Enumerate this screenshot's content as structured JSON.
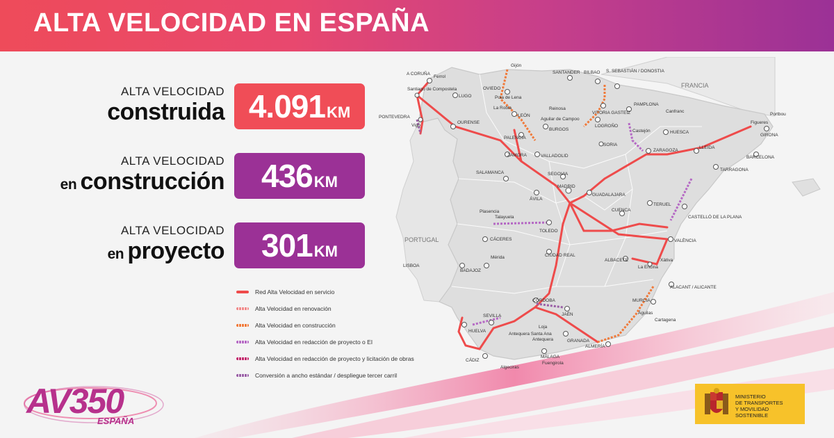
{
  "header": {
    "title": "ALTA VELOCIDAD EN ESPAÑA"
  },
  "stats": [
    {
      "label": "ALTA VELOCIDAD",
      "prefix": "",
      "word": "construida",
      "value": "4.091",
      "unit": "KM",
      "color": "#f04d57"
    },
    {
      "label": "ALTA VELOCIDAD",
      "prefix": "en ",
      "word": "construcción",
      "value": "436",
      "unit": "KM",
      "color": "#9b3196"
    },
    {
      "label": "ALTA VELOCIDAD",
      "prefix": "en ",
      "word": "proyecto",
      "value": "301",
      "unit": "KM",
      "color": "#9b3196"
    }
  ],
  "map": {
    "countries": {
      "francia": "FRANCIA",
      "portugal": "PORTUGAL"
    },
    "cities": [
      "A CORUÑA",
      "Ferrol",
      "Santiago de Compostela",
      "PONTEVEDRA",
      "Vigo",
      "LUGO",
      "OURENSE",
      "OVIEDO",
      "Gijón",
      "Pola de Lena",
      "La Robla",
      "LEÓN",
      "SANTANDER",
      "BILBAO",
      "S. SEBASTIÁN / DONOSTIA",
      "VITORIA GASTEIZ",
      "Reinosa",
      "Aguilar de Campoo",
      "BURGOS",
      "PALENCIA",
      "ZAMORA",
      "VALLADOLID",
      "PAMPLONA",
      "Castejón",
      "LOGROÑO",
      "SORIA",
      "HUESCA",
      "Canfranc",
      "Portbou",
      "Figueres",
      "GIRONA",
      "BARCELONA",
      "LLEIDA",
      "ZARAGOZA",
      "TARRAGONA",
      "SALAMANCA",
      "ÁVILA",
      "SEGOVIA",
      "MADRID",
      "GUADALAJARA",
      "TERUEL",
      "CUENCA",
      "CASTELLÓ DE LA PLANA",
      "VALÈNCIA",
      "Plasencia",
      "Talayuela",
      "TOLEDO",
      "CÁCERES",
      "Mérida",
      "BADAJOZ",
      "CIUDAD REAL",
      "ALBACETE",
      "Xàtiva",
      "La Encina",
      "ALACANT / ALICANTE",
      "MURCIA",
      "Cartagena",
      "Águilas",
      "CÓRDOBA",
      "JAÉN",
      "SEVILLA",
      "HUELVA",
      "CÁDIZ",
      "Loja",
      "Antequera",
      "Antequera Santa Ana",
      "GRANADA",
      "MÁLAGA",
      "Fuengirola",
      "ALMERÍA",
      "LISBOA",
      "Algeciras"
    ]
  },
  "legend": [
    {
      "label": "Red Alta Velocidad en servicio",
      "color": "#ee4b4b"
    },
    {
      "label": "Alta Velocidad en renovación",
      "color": "#f08a8a"
    },
    {
      "label": "Alta Velocidad en construcción",
      "color": "#f07a3a"
    },
    {
      "label": "Alta Velocidad en redacción de proyecto o EI",
      "color": "#b569c4"
    },
    {
      "label": "Alta Velocidad en redacción de proyecto y licitación de obras",
      "color": "#c2266b"
    },
    {
      "label": "Conversión a ancho estándar / despliegue tercer carril",
      "color": "#9a5fa6"
    }
  ],
  "branding": {
    "logo_text": "AV350",
    "logo_subtext": "ESPAÑA",
    "ministry_lines": [
      "MINISTERIO",
      "DE TRANSPORTES",
      "Y MOVILIDAD SOSTENIBLE"
    ]
  }
}
